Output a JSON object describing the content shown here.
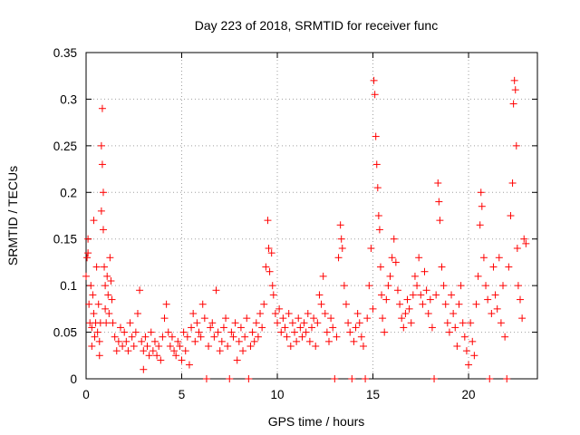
{
  "chart_data": {
    "type": "scatter",
    "title": "Day 223 of 2018, SRMTID for receiver func",
    "xlabel": "GPS time / hours",
    "ylabel": "SRMTID / TECUs",
    "xlim": [
      0,
      23.6
    ],
    "ylim": [
      0,
      0.35
    ],
    "xticks": [
      0,
      5,
      10,
      15,
      20
    ],
    "xtick_labels": [
      "0",
      "5",
      "10",
      "15",
      "20"
    ],
    "yticks": [
      0,
      0.05,
      0.1,
      0.15,
      0.2,
      0.25,
      0.3,
      0.35
    ],
    "ytick_labels": [
      "0",
      "0.05",
      "0.1",
      "0.15",
      "0.2",
      "0.25",
      "0.3",
      "0.35"
    ],
    "grid": true,
    "marker": "+",
    "color": "#ff0000",
    "series": [
      {
        "name": "SRMTID",
        "points": [
          [
            0.0,
            0.11
          ],
          [
            0.05,
            0.13
          ],
          [
            0.1,
            0.135
          ],
          [
            0.1,
            0.15
          ],
          [
            0.15,
            0.08
          ],
          [
            0.2,
            0.06
          ],
          [
            0.25,
            0.1
          ],
          [
            0.3,
            0.055
          ],
          [
            0.3,
            0.035
          ],
          [
            0.35,
            0.09
          ],
          [
            0.4,
            0.07
          ],
          [
            0.4,
            0.17
          ],
          [
            0.45,
            0.045
          ],
          [
            0.5,
            0.06
          ],
          [
            0.55,
            0.12
          ],
          [
            0.6,
            0.05
          ],
          [
            0.65,
            0.08
          ],
          [
            0.7,
            0.025
          ],
          [
            0.7,
            0.04
          ],
          [
            0.75,
            0.06
          ],
          [
            0.8,
            0.18
          ],
          [
            0.8,
            0.25
          ],
          [
            0.85,
            0.29
          ],
          [
            0.85,
            0.23
          ],
          [
            0.9,
            0.2
          ],
          [
            0.9,
            0.16
          ],
          [
            0.95,
            0.12
          ],
          [
            1.0,
            0.1
          ],
          [
            1.0,
            0.075
          ],
          [
            1.05,
            0.06
          ],
          [
            1.1,
            0.11
          ],
          [
            1.15,
            0.09
          ],
          [
            1.2,
            0.07
          ],
          [
            1.25,
            0.13
          ],
          [
            1.3,
            0.105
          ],
          [
            1.35,
            0.085
          ],
          [
            1.4,
            0.06
          ],
          [
            1.5,
            0.045
          ],
          [
            1.6,
            0.03
          ],
          [
            1.7,
            0.04
          ],
          [
            1.8,
            0.055
          ],
          [
            1.9,
            0.035
          ],
          [
            2.0,
            0.05
          ],
          [
            2.1,
            0.04
          ],
          [
            2.2,
            0.03
          ],
          [
            2.3,
            0.06
          ],
          [
            2.4,
            0.045
          ],
          [
            2.5,
            0.035
          ],
          [
            2.6,
            0.05
          ],
          [
            2.7,
            0.07
          ],
          [
            2.8,
            0.095
          ],
          [
            2.9,
            0.04
          ],
          [
            3.0,
            0.01
          ],
          [
            3.0,
            0.03
          ],
          [
            3.1,
            0.045
          ],
          [
            3.2,
            0.035
          ],
          [
            3.3,
            0.025
          ],
          [
            3.4,
            0.05
          ],
          [
            3.5,
            0.03
          ],
          [
            3.6,
            0.04
          ],
          [
            3.7,
            0.025
          ],
          [
            3.8,
            0.035
          ],
          [
            3.9,
            0.02
          ],
          [
            4.0,
            0.045
          ],
          [
            4.1,
            0.065
          ],
          [
            4.2,
            0.08
          ],
          [
            4.3,
            0.05
          ],
          [
            4.4,
            0.035
          ],
          [
            4.5,
            0.045
          ],
          [
            4.6,
            0.03
          ],
          [
            4.7,
            0.025
          ],
          [
            4.8,
            0.04
          ],
          [
            4.9,
            0.035
          ],
          [
            5.0,
            0.02
          ],
          [
            5.1,
            0.05
          ],
          [
            5.2,
            0.03
          ],
          [
            5.3,
            0.045
          ],
          [
            5.4,
            0.015
          ],
          [
            5.5,
            0.055
          ],
          [
            5.6,
            0.07
          ],
          [
            5.7,
            0.04
          ],
          [
            5.8,
            0.06
          ],
          [
            5.9,
            0.05
          ],
          [
            6.0,
            0.045
          ],
          [
            6.1,
            0.08
          ],
          [
            6.2,
            0.065
          ],
          [
            6.3,
            0.0
          ],
          [
            6.4,
            0.035
          ],
          [
            6.5,
            0.055
          ],
          [
            6.6,
            0.06
          ],
          [
            6.7,
            0.045
          ],
          [
            6.8,
            0.095
          ],
          [
            6.9,
            0.05
          ],
          [
            7.0,
            0.03
          ],
          [
            7.1,
            0.04
          ],
          [
            7.2,
            0.055
          ],
          [
            7.3,
            0.065
          ],
          [
            7.4,
            0.035
          ],
          [
            7.5,
            0.0
          ],
          [
            7.6,
            0.05
          ],
          [
            7.7,
            0.045
          ],
          [
            7.8,
            0.06
          ],
          [
            7.9,
            0.02
          ],
          [
            8.0,
            0.04
          ],
          [
            8.1,
            0.055
          ],
          [
            8.2,
            0.03
          ],
          [
            8.3,
            0.045
          ],
          [
            8.4,
            0.065
          ],
          [
            8.5,
            0.0
          ],
          [
            8.6,
            0.035
          ],
          [
            8.7,
            0.05
          ],
          [
            8.8,
            0.04
          ],
          [
            8.9,
            0.06
          ],
          [
            9.0,
            0.045
          ],
          [
            9.1,
            0.07
          ],
          [
            9.2,
            0.055
          ],
          [
            9.3,
            0.08
          ],
          [
            9.4,
            0.12
          ],
          [
            9.5,
            0.17
          ],
          [
            9.55,
            0.14
          ],
          [
            9.6,
            0.115
          ],
          [
            9.7,
            0.135
          ],
          [
            9.75,
            0.1
          ],
          [
            9.8,
            0.09
          ],
          [
            9.9,
            0.07
          ],
          [
            10.0,
            0.06
          ],
          [
            10.1,
            0.075
          ],
          [
            10.2,
            0.05
          ],
          [
            10.3,
            0.065
          ],
          [
            10.4,
            0.055
          ],
          [
            10.5,
            0.045
          ],
          [
            10.6,
            0.07
          ],
          [
            10.7,
            0.035
          ],
          [
            10.8,
            0.06
          ],
          [
            10.9,
            0.05
          ],
          [
            11.0,
            0.04
          ],
          [
            11.1,
            0.065
          ],
          [
            11.2,
            0.055
          ],
          [
            11.3,
            0.045
          ],
          [
            11.4,
            0.06
          ],
          [
            11.5,
            0.05
          ],
          [
            11.6,
            0.07
          ],
          [
            11.7,
            0.04
          ],
          [
            11.8,
            0.055
          ],
          [
            11.9,
            0.065
          ],
          [
            12.0,
            0.035
          ],
          [
            12.1,
            0.06
          ],
          [
            12.2,
            0.09
          ],
          [
            12.3,
            0.08
          ],
          [
            12.4,
            0.11
          ],
          [
            12.5,
            0.07
          ],
          [
            12.6,
            0.05
          ],
          [
            12.7,
            0.04
          ],
          [
            12.8,
            0.065
          ],
          [
            12.9,
            0.055
          ],
          [
            13.0,
            0.0
          ],
          [
            13.1,
            0.045
          ],
          [
            13.2,
            0.13
          ],
          [
            13.3,
            0.165
          ],
          [
            13.35,
            0.15
          ],
          [
            13.4,
            0.14
          ],
          [
            13.5,
            0.1
          ],
          [
            13.6,
            0.08
          ],
          [
            13.7,
            0.06
          ],
          [
            13.8,
            0.05
          ],
          [
            13.9,
            0.0
          ],
          [
            14.0,
            0.04
          ],
          [
            14.1,
            0.055
          ],
          [
            14.2,
            0.07
          ],
          [
            14.3,
            0.06
          ],
          [
            14.4,
            0.045
          ],
          [
            14.5,
            0.035
          ],
          [
            14.6,
            0.0
          ],
          [
            14.7,
            0.065
          ],
          [
            14.8,
            0.1
          ],
          [
            14.9,
            0.14
          ],
          [
            15.0,
            0.075
          ],
          [
            15.05,
            0.32
          ],
          [
            15.1,
            0.305
          ],
          [
            15.15,
            0.26
          ],
          [
            15.2,
            0.23
          ],
          [
            15.25,
            0.205
          ],
          [
            15.3,
            0.175
          ],
          [
            15.35,
            0.16
          ],
          [
            15.4,
            0.12
          ],
          [
            15.45,
            0.09
          ],
          [
            15.5,
            0.065
          ],
          [
            15.6,
            0.05
          ],
          [
            15.7,
            0.085
          ],
          [
            15.8,
            0.1
          ],
          [
            15.9,
            0.11
          ],
          [
            16.0,
            0.13
          ],
          [
            16.1,
            0.15
          ],
          [
            16.2,
            0.125
          ],
          [
            16.3,
            0.095
          ],
          [
            16.4,
            0.08
          ],
          [
            16.5,
            0.065
          ],
          [
            16.6,
            0.055
          ],
          [
            16.7,
            0.07
          ],
          [
            16.8,
            0.085
          ],
          [
            16.9,
            0.075
          ],
          [
            17.0,
            0.06
          ],
          [
            17.1,
            0.09
          ],
          [
            17.2,
            0.11
          ],
          [
            17.3,
            0.1
          ],
          [
            17.4,
            0.13
          ],
          [
            17.5,
            0.09
          ],
          [
            17.6,
            0.08
          ],
          [
            17.7,
            0.115
          ],
          [
            17.8,
            0.095
          ],
          [
            17.9,
            0.07
          ],
          [
            18.0,
            0.085
          ],
          [
            18.1,
            0.055
          ],
          [
            18.2,
            0.0
          ],
          [
            18.3,
            0.09
          ],
          [
            18.4,
            0.21
          ],
          [
            18.45,
            0.19
          ],
          [
            18.5,
            0.17
          ],
          [
            18.6,
            0.12
          ],
          [
            18.7,
            0.1
          ],
          [
            18.8,
            0.08
          ],
          [
            18.9,
            0.06
          ],
          [
            19.0,
            0.05
          ],
          [
            19.1,
            0.09
          ],
          [
            19.2,
            0.07
          ],
          [
            19.3,
            0.055
          ],
          [
            19.4,
            0.035
          ],
          [
            19.5,
            0.08
          ],
          [
            19.6,
            0.1
          ],
          [
            19.7,
            0.06
          ],
          [
            19.8,
            0.045
          ],
          [
            19.9,
            0.03
          ],
          [
            20.0,
            0.015
          ],
          [
            20.1,
            0.06
          ],
          [
            20.2,
            0.04
          ],
          [
            20.3,
            0.025
          ],
          [
            20.4,
            0.08
          ],
          [
            20.5,
            0.11
          ],
          [
            20.6,
            0.165
          ],
          [
            20.65,
            0.2
          ],
          [
            20.7,
            0.185
          ],
          [
            20.8,
            0.13
          ],
          [
            20.9,
            0.1
          ],
          [
            21.0,
            0.085
          ],
          [
            21.1,
            0.0
          ],
          [
            21.2,
            0.07
          ],
          [
            21.3,
            0.12
          ],
          [
            21.4,
            0.09
          ],
          [
            21.5,
            0.075
          ],
          [
            21.6,
            0.13
          ],
          [
            21.7,
            0.06
          ],
          [
            21.8,
            0.1
          ],
          [
            21.9,
            0.045
          ],
          [
            22.0,
            0.0
          ],
          [
            22.1,
            0.12
          ],
          [
            22.2,
            0.175
          ],
          [
            22.3,
            0.21
          ],
          [
            22.35,
            0.295
          ],
          [
            22.4,
            0.32
          ],
          [
            22.45,
            0.31
          ],
          [
            22.5,
            0.25
          ],
          [
            22.55,
            0.14
          ],
          [
            22.6,
            0.1
          ],
          [
            22.7,
            0.085
          ],
          [
            22.8,
            0.065
          ],
          [
            22.9,
            0.15
          ],
          [
            23.0,
            0.145
          ]
        ]
      }
    ]
  }
}
